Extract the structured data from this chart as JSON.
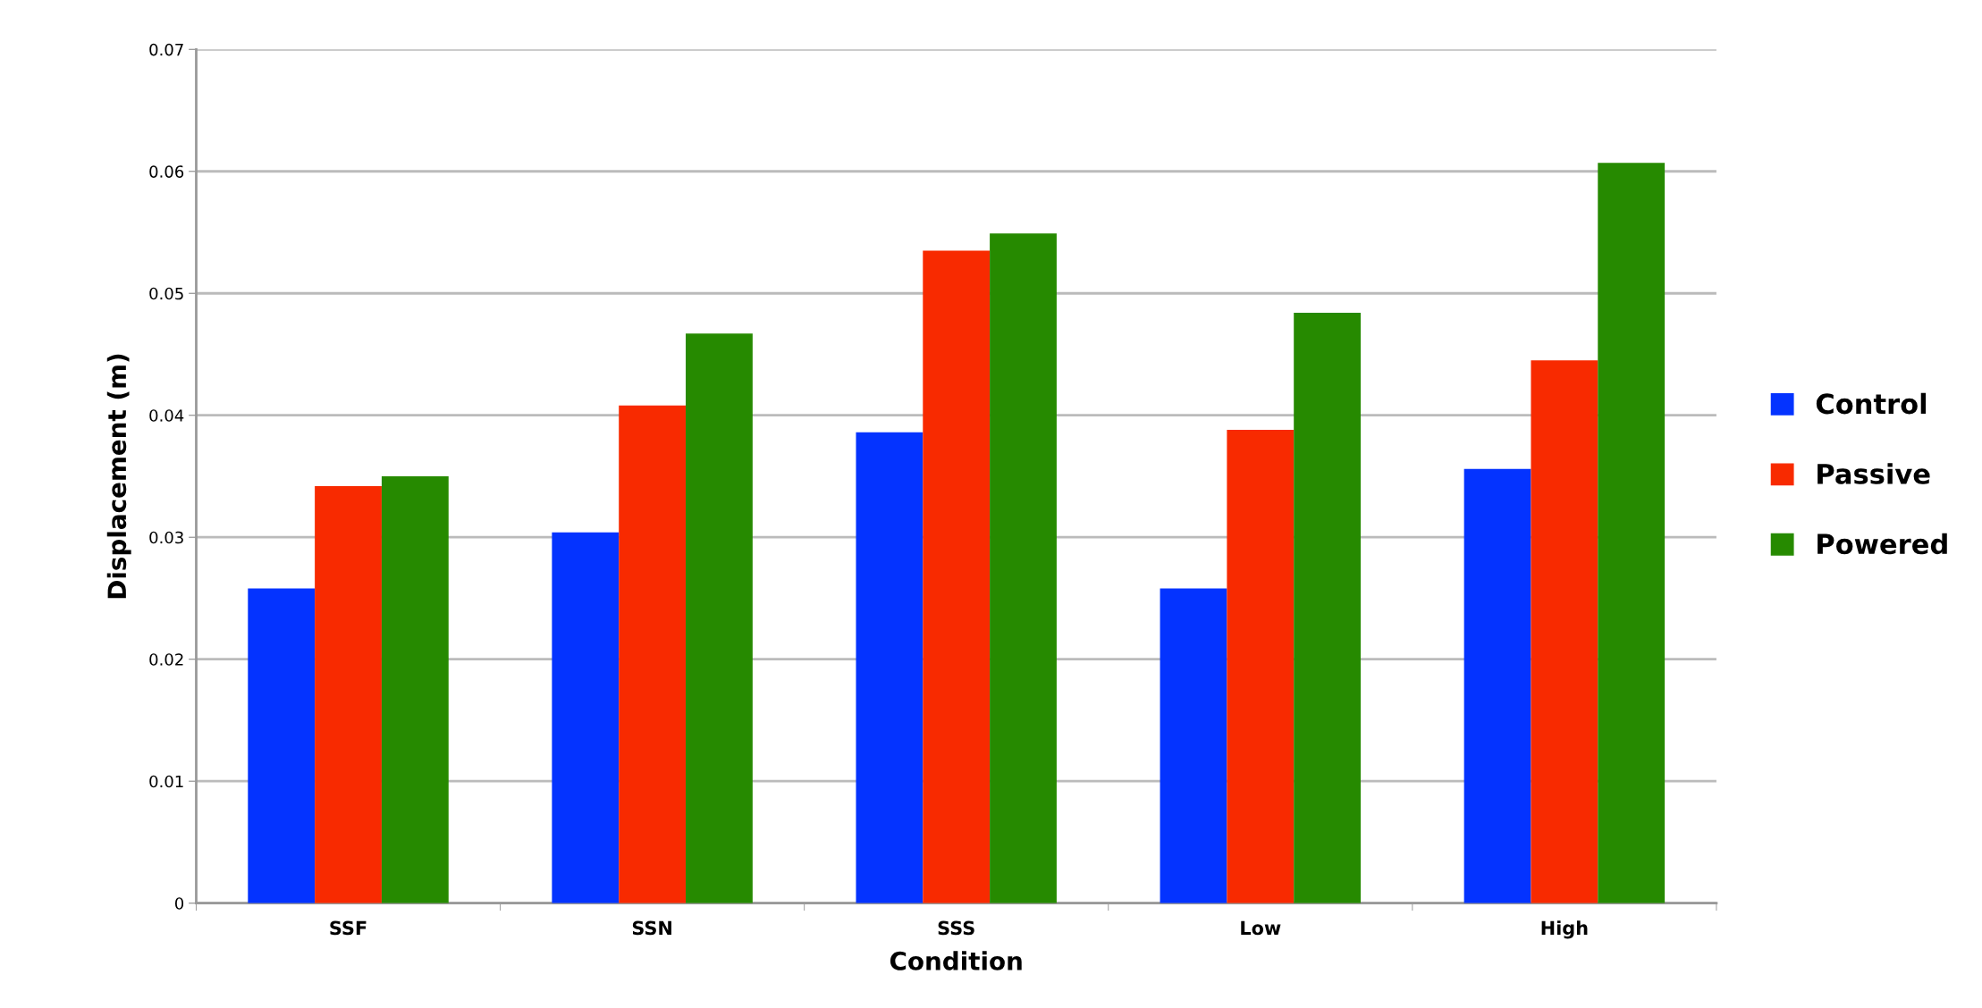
{
  "chart_data": {
    "type": "bar",
    "xlabel": "Condition",
    "ylabel": "Displacement (m)",
    "categories": [
      "SSF",
      "SSN",
      "SSS",
      "Low",
      "High"
    ],
    "series": [
      {
        "name": "Control",
        "color": "#0433ff",
        "values": [
          0.0258,
          0.0304,
          0.0386,
          0.0258,
          0.0356
        ]
      },
      {
        "name": "Passive",
        "color": "#f82a00",
        "values": [
          0.0342,
          0.0408,
          0.0535,
          0.0388,
          0.0445
        ]
      },
      {
        "name": "Powered",
        "color": "#268a00",
        "values": [
          0.035,
          0.0467,
          0.0549,
          0.0484,
          0.0607
        ]
      }
    ],
    "ylim": [
      0,
      0.07
    ],
    "yticks": [
      0,
      0.01,
      0.02,
      0.03,
      0.04,
      0.05,
      0.06,
      0.07
    ],
    "grid": "y",
    "legend": "right"
  }
}
